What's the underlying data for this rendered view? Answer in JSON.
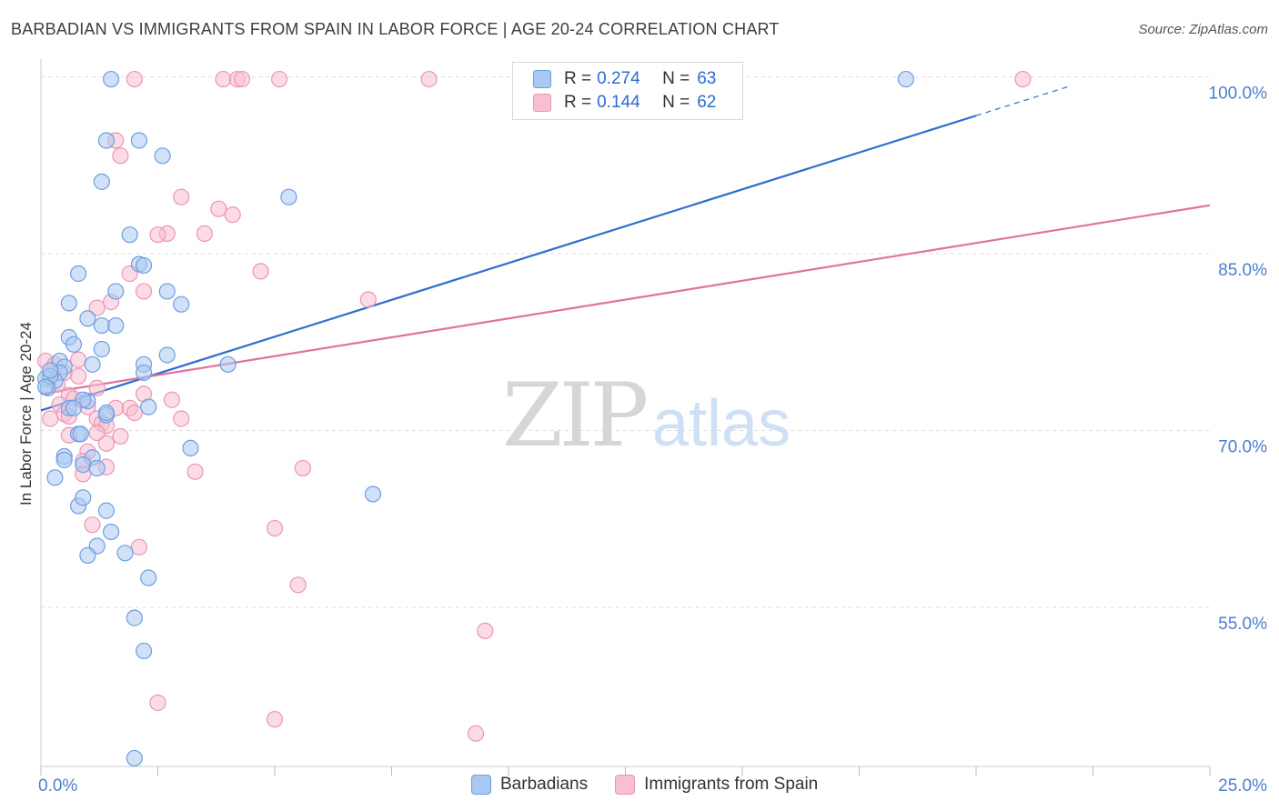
{
  "title": "BARBADIAN VS IMMIGRANTS FROM SPAIN IN LABOR FORCE | AGE 20-24 CORRELATION CHART",
  "source": "Source: ZipAtlas.com",
  "watermark": {
    "zip": "ZIP",
    "atlas": "atlas"
  },
  "colors": {
    "blue_fill": "#a9c8f2",
    "blue_stroke": "#6e9fe0",
    "blue_line": "#2e6fcf",
    "pink_fill": "#f7bfd1",
    "pink_stroke": "#ec95b4",
    "pink_line": "#e0739c",
    "grid": "#dddddd",
    "axis_label": "#4a7fd0"
  },
  "legend": {
    "rows": [
      {
        "r_label": "R =",
        "r_value": "0.274",
        "n_label": "N =",
        "n_value": "63"
      },
      {
        "r_label": "R =",
        "r_value": "0.144",
        "n_label": "N =",
        "n_value": "62"
      }
    ]
  },
  "bottom_legend": [
    "Barbadians",
    "Immigrants from Spain"
  ],
  "chart_data": {
    "type": "scatter",
    "title": "BARBADIAN VS IMMIGRANTS FROM SPAIN IN LABOR FORCE | AGE 20-24 CORRELATION CHART",
    "xlabel": "",
    "ylabel": "In Labor Force | Age 20-24",
    "xlim": [
      0,
      25
    ],
    "ylim": [
      41.5,
      101.5
    ],
    "x_tick_labels": [
      {
        "value": 0,
        "label": "0.0%"
      },
      {
        "value": 25,
        "label": "25.0%"
      }
    ],
    "y_tick_labels": [
      {
        "value": 100,
        "label": "100.0%"
      },
      {
        "value": 85,
        "label": "85.0%"
      },
      {
        "value": 70,
        "label": "70.0%"
      },
      {
        "value": 55,
        "label": "55.0%"
      }
    ],
    "series": [
      {
        "name": "Barbadians",
        "trend": {
          "x0": 0,
          "y0": 71.7,
          "x1": 20,
          "y1": 96.7,
          "dash_to_x": 22,
          "dash_to_y": 99.2
        },
        "points": [
          [
            1.5,
            99.8
          ],
          [
            18.5,
            99.8
          ],
          [
            1.4,
            94.6
          ],
          [
            2.1,
            94.6
          ],
          [
            2.6,
            93.3
          ],
          [
            5.3,
            89.8
          ],
          [
            1.3,
            91.1
          ],
          [
            1.9,
            86.6
          ],
          [
            2.1,
            84.1
          ],
          [
            2.2,
            84.0
          ],
          [
            0.8,
            83.3
          ],
          [
            1.6,
            81.8
          ],
          [
            2.7,
            81.8
          ],
          [
            0.6,
            80.8
          ],
          [
            3.0,
            80.7
          ],
          [
            1.0,
            79.5
          ],
          [
            1.3,
            78.9
          ],
          [
            1.6,
            78.9
          ],
          [
            0.6,
            77.9
          ],
          [
            0.7,
            77.3
          ],
          [
            1.3,
            76.9
          ],
          [
            2.7,
            76.4
          ],
          [
            0.4,
            75.9
          ],
          [
            1.1,
            75.6
          ],
          [
            0.5,
            75.4
          ],
          [
            2.2,
            75.6
          ],
          [
            4.0,
            75.6
          ],
          [
            0.1,
            74.4
          ],
          [
            0.4,
            74.9
          ],
          [
            0.3,
            74.2
          ],
          [
            2.2,
            74.9
          ],
          [
            0.15,
            73.6
          ],
          [
            0.2,
            74.6
          ],
          [
            0.1,
            73.7
          ],
          [
            1.0,
            72.5
          ],
          [
            0.9,
            72.6
          ],
          [
            2.3,
            72.0
          ],
          [
            1.4,
            71.3
          ],
          [
            0.6,
            71.9
          ],
          [
            0.7,
            71.9
          ],
          [
            1.4,
            71.5
          ],
          [
            0.8,
            69.7
          ],
          [
            0.85,
            69.7
          ],
          [
            3.2,
            68.5
          ],
          [
            0.5,
            67.8
          ],
          [
            0.5,
            67.5
          ],
          [
            1.1,
            67.7
          ],
          [
            0.9,
            67.1
          ],
          [
            1.2,
            66.8
          ],
          [
            0.3,
            66.0
          ],
          [
            7.1,
            64.6
          ],
          [
            0.8,
            63.6
          ],
          [
            1.4,
            63.2
          ],
          [
            0.9,
            64.3
          ],
          [
            1.5,
            61.4
          ],
          [
            1.2,
            60.2
          ],
          [
            1.0,
            59.4
          ],
          [
            1.8,
            59.6
          ],
          [
            2.3,
            57.5
          ],
          [
            2.0,
            54.1
          ],
          [
            2.2,
            51.3
          ],
          [
            2.0,
            42.2
          ],
          [
            0.2,
            75.1
          ]
        ]
      },
      {
        "name": "Immigrants from Spain",
        "trend": {
          "x0": 0,
          "y0": 73.1,
          "x1": 25,
          "y1": 89.1
        },
        "points": [
          [
            2.0,
            99.8
          ],
          [
            3.9,
            99.8
          ],
          [
            4.2,
            99.8
          ],
          [
            4.3,
            99.8
          ],
          [
            5.1,
            99.8
          ],
          [
            8.3,
            99.8
          ],
          [
            21.0,
            99.8
          ],
          [
            1.6,
            94.6
          ],
          [
            1.7,
            93.3
          ],
          [
            3.0,
            89.8
          ],
          [
            3.8,
            88.8
          ],
          [
            4.1,
            88.3
          ],
          [
            2.7,
            86.7
          ],
          [
            3.5,
            86.7
          ],
          [
            2.5,
            86.6
          ],
          [
            4.7,
            83.5
          ],
          [
            1.9,
            83.3
          ],
          [
            2.2,
            81.8
          ],
          [
            1.5,
            80.9
          ],
          [
            7.0,
            81.1
          ],
          [
            1.2,
            80.4
          ],
          [
            0.8,
            76.0
          ],
          [
            0.1,
            75.9
          ],
          [
            0.3,
            75.6
          ],
          [
            0.5,
            74.9
          ],
          [
            0.8,
            74.6
          ],
          [
            0.35,
            73.9
          ],
          [
            1.2,
            73.6
          ],
          [
            0.6,
            73.0
          ],
          [
            2.2,
            73.1
          ],
          [
            2.8,
            72.6
          ],
          [
            0.7,
            72.7
          ],
          [
            0.4,
            72.2
          ],
          [
            1.0,
            72.0
          ],
          [
            1.6,
            71.9
          ],
          [
            1.9,
            71.9
          ],
          [
            2.0,
            71.5
          ],
          [
            0.5,
            71.4
          ],
          [
            0.6,
            71.2
          ],
          [
            0.2,
            71.0
          ],
          [
            1.2,
            71.0
          ],
          [
            3.0,
            71.0
          ],
          [
            1.3,
            70.6
          ],
          [
            1.4,
            70.4
          ],
          [
            1.2,
            69.8
          ],
          [
            0.6,
            69.6
          ],
          [
            1.7,
            69.5
          ],
          [
            1.4,
            68.9
          ],
          [
            1.0,
            68.2
          ],
          [
            0.9,
            67.4
          ],
          [
            1.4,
            66.9
          ],
          [
            5.6,
            66.8
          ],
          [
            3.3,
            66.5
          ],
          [
            0.9,
            66.3
          ],
          [
            1.1,
            62.0
          ],
          [
            5.0,
            61.7
          ],
          [
            2.1,
            60.1
          ],
          [
            5.5,
            56.9
          ],
          [
            9.5,
            53.0
          ],
          [
            2.5,
            46.9
          ],
          [
            5.0,
            45.5
          ],
          [
            9.3,
            44.3
          ]
        ]
      }
    ],
    "legend_position": "top-center"
  }
}
